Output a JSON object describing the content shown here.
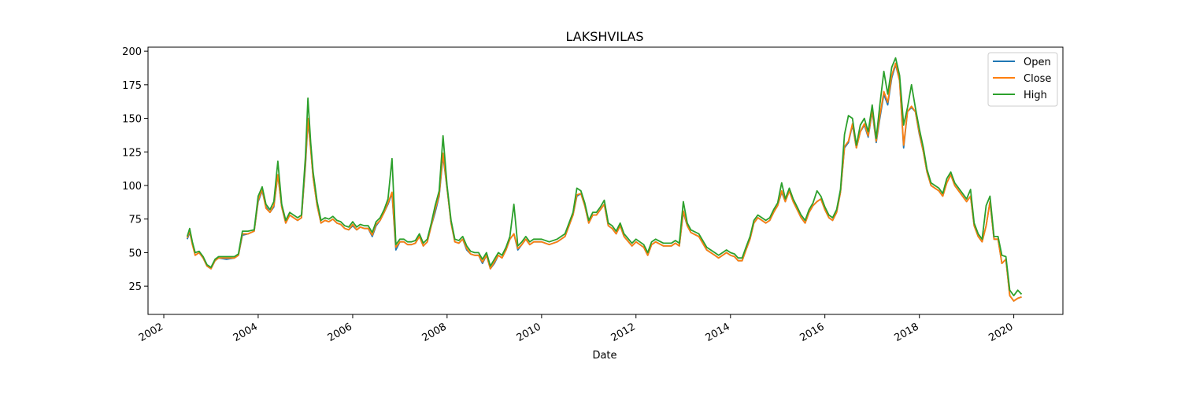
{
  "chart_data": {
    "type": "line",
    "title": "LAKSHVILAS",
    "xlabel": "Date",
    "ylabel": "",
    "xlim": [
      "2001-09-01",
      "2021-01-15"
    ],
    "ylim": [
      4,
      203
    ],
    "x_ticks": [
      "2002",
      "2004",
      "2006",
      "2008",
      "2010",
      "2012",
      "2014",
      "2016",
      "2018",
      "2020"
    ],
    "y_ticks": [
      25,
      50,
      75,
      100,
      125,
      150,
      175,
      200
    ],
    "grid": false,
    "legend_position": "top-right",
    "dates": [
      "2002-07-01",
      "2002-07-20",
      "2002-08-10",
      "2002-09-01",
      "2002-10-01",
      "2002-11-01",
      "2002-12-01",
      "2003-01-01",
      "2003-02-01",
      "2003-03-01",
      "2003-05-01",
      "2003-07-01",
      "2003-08-01",
      "2003-09-01",
      "2003-10-15",
      "2003-12-01",
      "2004-01-01",
      "2004-02-01",
      "2004-03-01",
      "2004-04-01",
      "2004-05-01",
      "2004-06-01",
      "2004-07-01",
      "2004-08-01",
      "2004-09-01",
      "2004-10-01",
      "2004-11-01",
      "2004-12-01",
      "2005-01-01",
      "2005-01-20",
      "2005-02-10",
      "2005-03-01",
      "2005-04-01",
      "2005-05-01",
      "2005-06-01",
      "2005-07-01",
      "2005-08-01",
      "2005-09-01",
      "2005-10-01",
      "2005-11-01",
      "2005-12-01",
      "2006-01-01",
      "2006-02-01",
      "2006-03-01",
      "2006-04-01",
      "2006-05-01",
      "2006-06-01",
      "2006-07-01",
      "2006-08-01",
      "2006-09-01",
      "2006-10-01",
      "2006-11-01",
      "2006-12-01",
      "2007-01-01",
      "2007-02-01",
      "2007-03-01",
      "2007-04-01",
      "2007-05-01",
      "2007-06-01",
      "2007-07-01",
      "2007-08-01",
      "2007-09-01",
      "2007-10-01",
      "2007-11-01",
      "2007-12-01",
      "2008-01-01",
      "2008-02-01",
      "2008-03-01",
      "2008-04-01",
      "2008-05-01",
      "2008-06-01",
      "2008-07-01",
      "2008-08-01",
      "2008-09-01",
      "2008-10-01",
      "2008-11-01",
      "2008-12-01",
      "2009-01-01",
      "2009-02-01",
      "2009-03-01",
      "2009-04-01",
      "2009-05-01",
      "2009-06-01",
      "2009-07-01",
      "2009-08-01",
      "2009-09-01",
      "2009-10-01",
      "2009-11-01",
      "2009-12-01",
      "2010-01-01",
      "2010-03-01",
      "2010-05-01",
      "2010-07-01",
      "2010-09-01",
      "2010-10-01",
      "2010-11-01",
      "2010-12-01",
      "2011-01-01",
      "2011-02-01",
      "2011-03-01",
      "2011-04-01",
      "2011-05-01",
      "2011-06-01",
      "2011-07-01",
      "2011-08-01",
      "2011-09-01",
      "2011-10-01",
      "2011-12-01",
      "2012-01-01",
      "2012-03-01",
      "2012-04-01",
      "2012-05-01",
      "2012-06-01",
      "2012-08-01",
      "2012-10-01",
      "2012-11-01",
      "2012-12-01",
      "2013-01-01",
      "2013-02-01",
      "2013-03-01",
      "2013-05-01",
      "2013-07-01",
      "2013-08-01",
      "2013-09-01",
      "2013-10-01",
      "2013-11-01",
      "2013-12-01",
      "2014-01-01",
      "2014-02-01",
      "2014-03-01",
      "2014-04-01",
      "2014-05-01",
      "2014-06-01",
      "2014-07-01",
      "2014-08-01",
      "2014-09-01",
      "2014-10-01",
      "2014-11-01",
      "2014-12-01",
      "2015-01-01",
      "2015-02-01",
      "2015-03-01",
      "2015-04-01",
      "2015-05-01",
      "2015-06-01",
      "2015-07-01",
      "2015-08-01",
      "2015-09-01",
      "2015-10-01",
      "2015-11-01",
      "2015-12-01",
      "2016-01-01",
      "2016-02-01",
      "2016-03-01",
      "2016-04-01",
      "2016-05-01",
      "2016-06-01",
      "2016-07-01",
      "2016-08-01",
      "2016-09-01",
      "2016-10-01",
      "2016-11-01",
      "2016-12-01",
      "2017-01-01",
      "2017-02-01",
      "2017-03-01",
      "2017-04-01",
      "2017-05-01",
      "2017-06-01",
      "2017-07-01",
      "2017-08-01",
      "2017-09-01",
      "2017-10-01",
      "2017-11-01",
      "2017-12-01",
      "2018-01-01",
      "2018-02-01",
      "2018-03-01",
      "2018-04-01",
      "2018-05-01",
      "2018-06-01",
      "2018-07-01",
      "2018-08-01",
      "2018-09-01",
      "2018-10-01",
      "2018-11-01",
      "2018-12-01",
      "2019-01-01",
      "2019-02-01",
      "2019-03-01",
      "2019-04-01",
      "2019-05-01",
      "2019-06-01",
      "2019-07-01",
      "2019-08-01",
      "2019-09-01",
      "2019-10-01",
      "2019-11-01",
      "2019-12-01",
      "2020-01-01",
      "2020-02-01",
      "2020-03-01"
    ],
    "series": [
      {
        "name": "Open",
        "color": "#1f77b4",
        "values": [
          60,
          65,
          57,
          48,
          50,
          46,
          40,
          38,
          44,
          46,
          45,
          46,
          48,
          63,
          64,
          66,
          88,
          96,
          84,
          80,
          84,
          108,
          84,
          72,
          78,
          76,
          74,
          76,
          115,
          148,
          128,
          106,
          85,
          72,
          74,
          73,
          75,
          72,
          71,
          68,
          67,
          70,
          67,
          69,
          68,
          68,
          62,
          70,
          74,
          80,
          86,
          94,
          52,
          58,
          58,
          56,
          56,
          57,
          62,
          55,
          58,
          70,
          80,
          92,
          122,
          98,
          72,
          58,
          57,
          60,
          52,
          49,
          48,
          48,
          42,
          48,
          38,
          42,
          48,
          46,
          52,
          60,
          64,
          52,
          56,
          60,
          56,
          58,
          58,
          58,
          56,
          58,
          62,
          78,
          92,
          94,
          85,
          72,
          78,
          78,
          82,
          86,
          70,
          68,
          64,
          70,
          62,
          55,
          58,
          54,
          48,
          56,
          58,
          55,
          55,
          57,
          55,
          80,
          70,
          65,
          62,
          52,
          50,
          48,
          46,
          48,
          50,
          48,
          47,
          44,
          44,
          52,
          60,
          72,
          76,
          74,
          72,
          74,
          80,
          85,
          95,
          88,
          96,
          88,
          82,
          76,
          72,
          80,
          85,
          88,
          90,
          82,
          76,
          74,
          80,
          95,
          128,
          132,
          145,
          128,
          140,
          145,
          136,
          155,
          132,
          150,
          168,
          160,
          180,
          190,
          178,
          128,
          155,
          158,
          155,
          138,
          125,
          110,
          100,
          98,
          96,
          92,
          102,
          108,
          100,
          96,
          92,
          88,
          92,
          70,
          62,
          58,
          70,
          88,
          60,
          60,
          42,
          45,
          18,
          14,
          16,
          17
        ]
      },
      {
        "name": "Close",
        "color": "#ff7f0e",
        "values": [
          61,
          66,
          56,
          48,
          50,
          46,
          40,
          38,
          44,
          46,
          46,
          46,
          48,
          64,
          64,
          66,
          89,
          97,
          83,
          80,
          85,
          108,
          84,
          72,
          78,
          76,
          74,
          76,
          117,
          150,
          127,
          106,
          85,
          72,
          74,
          73,
          75,
          72,
          71,
          68,
          67,
          71,
          67,
          69,
          68,
          68,
          63,
          71,
          74,
          80,
          87,
          95,
          54,
          58,
          58,
          56,
          56,
          57,
          62,
          55,
          58,
          70,
          82,
          93,
          124,
          98,
          72,
          58,
          57,
          60,
          53,
          49,
          48,
          48,
          43,
          48,
          38,
          43,
          48,
          46,
          52,
          60,
          64,
          53,
          56,
          60,
          56,
          58,
          58,
          58,
          56,
          58,
          62,
          78,
          93,
          94,
          85,
          72,
          78,
          78,
          82,
          86,
          70,
          68,
          64,
          70,
          62,
          55,
          58,
          54,
          48,
          56,
          58,
          55,
          55,
          57,
          55,
          81,
          70,
          65,
          62,
          52,
          50,
          48,
          46,
          48,
          50,
          48,
          47,
          44,
          44,
          52,
          60,
          72,
          76,
          74,
          72,
          74,
          80,
          85,
          96,
          88,
          96,
          88,
          82,
          76,
          72,
          80,
          85,
          88,
          90,
          82,
          76,
          74,
          80,
          95,
          129,
          133,
          146,
          128,
          140,
          146,
          137,
          156,
          133,
          152,
          170,
          162,
          182,
          191,
          178,
          130,
          155,
          159,
          155,
          139,
          125,
          110,
          100,
          98,
          96,
          92,
          102,
          108,
          100,
          96,
          92,
          88,
          92,
          70,
          62,
          58,
          70,
          88,
          60,
          60,
          42,
          45,
          18,
          14,
          16,
          17
        ]
      },
      {
        "name": "High",
        "color": "#2ca02c",
        "values": [
          62,
          68,
          58,
          50,
          51,
          47,
          41,
          39,
          45,
          47,
          47,
          47,
          49,
          66,
          66,
          67,
          92,
          99,
          86,
          82,
          88,
          118,
          86,
          74,
          80,
          78,
          76,
          78,
          122,
          165,
          132,
          110,
          88,
          74,
          76,
          75,
          77,
          74,
          73,
          70,
          69,
          73,
          69,
          71,
          70,
          70,
          65,
          73,
          76,
          82,
          90,
          120,
          56,
          60,
          60,
          58,
          58,
          59,
          64,
          57,
          60,
          72,
          85,
          96,
          137,
          100,
          74,
          60,
          59,
          62,
          55,
          51,
          50,
          50,
          45,
          50,
          40,
          45,
          50,
          48,
          54,
          62,
          86,
          55,
          58,
          62,
          58,
          60,
          60,
          60,
          58,
          60,
          64,
          80,
          98,
          96,
          87,
          74,
          80,
          80,
          84,
          89,
          72,
          70,
          66,
          72,
          64,
          57,
          60,
          56,
          50,
          58,
          60,
          57,
          57,
          59,
          57,
          88,
          72,
          67,
          64,
          54,
          52,
          50,
          48,
          50,
          52,
          50,
          49,
          46,
          46,
          54,
          62,
          74,
          78,
          76,
          74,
          76,
          82,
          87,
          102,
          90,
          98,
          90,
          84,
          78,
          74,
          82,
          87,
          96,
          92,
          84,
          78,
          76,
          82,
          97,
          138,
          152,
          150,
          130,
          145,
          150,
          140,
          160,
          135,
          160,
          185,
          168,
          188,
          195,
          182,
          145,
          158,
          175,
          158,
          142,
          128,
          112,
          102,
          100,
          98,
          94,
          105,
          110,
          102,
          98,
          94,
          90,
          97,
          72,
          64,
          60,
          85,
          92,
          62,
          62,
          48,
          47,
          22,
          18,
          22,
          19
        ]
      }
    ]
  }
}
